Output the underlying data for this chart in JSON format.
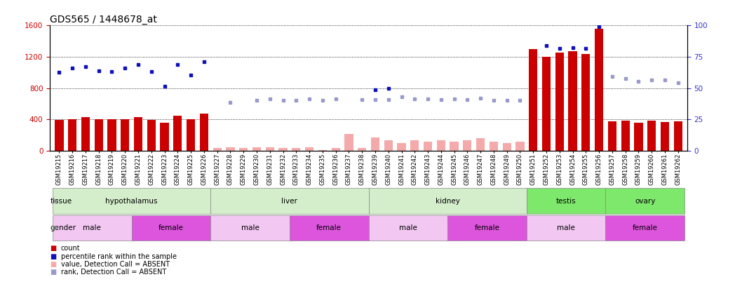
{
  "title": "GDS565 / 1448678_at",
  "samples": [
    "GSM19215",
    "GSM19216",
    "GSM19217",
    "GSM19218",
    "GSM19219",
    "GSM19220",
    "GSM19221",
    "GSM19222",
    "GSM19223",
    "GSM19224",
    "GSM19225",
    "GSM19226",
    "GSM19227",
    "GSM19228",
    "GSM19229",
    "GSM19230",
    "GSM19231",
    "GSM19232",
    "GSM19233",
    "GSM19234",
    "GSM19235",
    "GSM19236",
    "GSM19237",
    "GSM19238",
    "GSM19239",
    "GSM19240",
    "GSM19241",
    "GSM19242",
    "GSM19243",
    "GSM19244",
    "GSM19245",
    "GSM19246",
    "GSM19247",
    "GSM19248",
    "GSM19249",
    "GSM19250",
    "GSM19251",
    "GSM19252",
    "GSM19253",
    "GSM19254",
    "GSM19255",
    "GSM19256",
    "GSM19257",
    "GSM19258",
    "GSM19259",
    "GSM19260",
    "GSM19261",
    "GSM19262"
  ],
  "counts": [
    390,
    400,
    430,
    400,
    400,
    400,
    430,
    390,
    360,
    450,
    400,
    470,
    null,
    null,
    null,
    null,
    null,
    null,
    null,
    null,
    null,
    null,
    null,
    null,
    null,
    null,
    null,
    null,
    null,
    null,
    null,
    null,
    null,
    null,
    null,
    null,
    1300,
    1200,
    1250,
    1270,
    1240,
    1560,
    370,
    380,
    360,
    380,
    365,
    375
  ],
  "absent_counts": [
    null,
    null,
    null,
    null,
    null,
    null,
    null,
    null,
    null,
    null,
    null,
    null,
    30,
    45,
    30,
    40,
    40,
    30,
    35,
    40,
    10,
    35,
    210,
    35,
    170,
    130,
    100,
    130,
    110,
    130,
    110,
    130,
    160,
    110,
    95,
    110,
    null,
    null,
    null,
    null,
    null,
    null,
    null,
    null,
    null,
    null,
    null,
    null
  ],
  "blue_dots": [
    1000,
    1060,
    1070,
    1020,
    1010,
    1060,
    1100,
    1010,
    820,
    1100,
    970,
    1140,
    null,
    null,
    null,
    null,
    null,
    null,
    null,
    null,
    null,
    null,
    null,
    null,
    780,
    800,
    null,
    null,
    null,
    null,
    null,
    null,
    null,
    null,
    null,
    null,
    null,
    1340,
    1310,
    1320,
    1310,
    1590,
    null,
    null,
    null,
    null,
    null,
    null
  ],
  "light_blue_dots": [
    null,
    null,
    null,
    null,
    null,
    null,
    null,
    null,
    null,
    null,
    null,
    null,
    null,
    620,
    null,
    640,
    660,
    640,
    640,
    660,
    640,
    660,
    null,
    650,
    650,
    650,
    690,
    660,
    660,
    650,
    660,
    650,
    670,
    640,
    640,
    640,
    null,
    null,
    null,
    null,
    null,
    null,
    950,
    920,
    890,
    900,
    900,
    870
  ],
  "tissue_groups": [
    {
      "label": "hypothalamus",
      "start": 0,
      "end": 11,
      "color": "#d4eecb"
    },
    {
      "label": "liver",
      "start": 12,
      "end": 23,
      "color": "#d4eecb"
    },
    {
      "label": "kidney",
      "start": 24,
      "end": 35,
      "color": "#d4eecb"
    },
    {
      "label": "testis",
      "start": 36,
      "end": 41,
      "color": "#7de86b"
    },
    {
      "label": "ovary",
      "start": 42,
      "end": 47,
      "color": "#7de86b"
    }
  ],
  "gender_groups": [
    {
      "label": "male",
      "start": 0,
      "end": 5,
      "color": "#f2c8f2"
    },
    {
      "label": "female",
      "start": 6,
      "end": 11,
      "color": "#dd55dd"
    },
    {
      "label": "male",
      "start": 12,
      "end": 17,
      "color": "#f2c8f2"
    },
    {
      "label": "female",
      "start": 18,
      "end": 23,
      "color": "#dd55dd"
    },
    {
      "label": "male",
      "start": 24,
      "end": 29,
      "color": "#f2c8f2"
    },
    {
      "label": "female",
      "start": 30,
      "end": 35,
      "color": "#dd55dd"
    },
    {
      "label": "male",
      "start": 36,
      "end": 41,
      "color": "#f2c8f2"
    },
    {
      "label": "female",
      "start": 42,
      "end": 47,
      "color": "#dd55dd"
    }
  ],
  "ylim_left": [
    0,
    1600
  ],
  "yticks_left": [
    0,
    400,
    800,
    1200,
    1600
  ],
  "yticks_right": [
    0,
    25,
    50,
    75,
    100
  ],
  "left_color": "#cc0000",
  "right_color": "#3333cc",
  "bar_color": "#cc0000",
  "absent_bar_color": "#f4aaaa",
  "dot_color": "#1111bb",
  "absent_dot_color": "#9999cc",
  "bg_color": "#ffffff",
  "title_fontsize": 10,
  "tick_fontsize": 6,
  "label_fontsize": 7.5,
  "legend_fontsize": 7
}
